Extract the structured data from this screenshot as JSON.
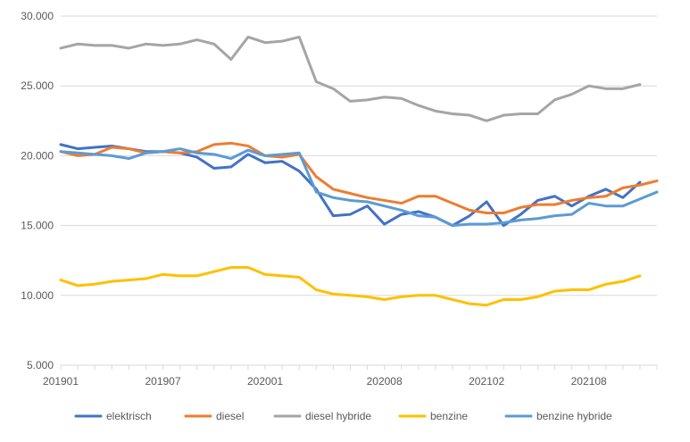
{
  "chart_data": {
    "type": "line",
    "ylim": [
      5000,
      30000
    ],
    "y_ticks": [
      "5.000",
      "10.000",
      "15.000",
      "20.000",
      "25.000",
      "30.000"
    ],
    "y_tick_values": [
      5000,
      10000,
      15000,
      20000,
      25000,
      30000
    ],
    "x_ticks": [
      "201901",
      "201907",
      "202001",
      "202008",
      "202102",
      "202108"
    ],
    "x_tick_index": [
      0,
      6,
      12,
      19,
      25,
      31
    ],
    "x": [
      "201901",
      "201902",
      "201903",
      "201904",
      "201905",
      "201906",
      "201907",
      "201908",
      "201909",
      "201910",
      "201911",
      "201912",
      "202001",
      "202002",
      "202003",
      "202004",
      "202005",
      "202006",
      "202007",
      "202008",
      "202009",
      "202010",
      "202011",
      "202012",
      "202101",
      "202102",
      "202103",
      "202104",
      "202105",
      "202106",
      "202107",
      "202108",
      "202109",
      "202110",
      "202111",
      "202112"
    ],
    "grid": true,
    "legend": "bottom",
    "series": [
      {
        "name": "elektrisch",
        "color": "#4472C4",
        "values": [
          20800,
          20500,
          20600,
          20700,
          20500,
          20300,
          20300,
          20200,
          19900,
          19100,
          19200,
          20100,
          19500,
          19600,
          18900,
          17600,
          15700,
          15800,
          16400,
          15100,
          15800,
          16000,
          15600,
          15000,
          15700,
          16700,
          15000,
          15800,
          16800,
          17100,
          16400,
          17100,
          17600,
          17000,
          18100,
          null
        ]
      },
      {
        "name": "diesel",
        "color": "#ED7D31",
        "values": [
          20300,
          20000,
          20100,
          20600,
          20500,
          20200,
          20300,
          20200,
          20300,
          20800,
          20900,
          20700,
          20000,
          19900,
          20100,
          18500,
          17600,
          17300,
          17000,
          16800,
          16600,
          17100,
          17100,
          16600,
          16100,
          15900,
          15900,
          16300,
          16500,
          16500,
          16800,
          17000,
          17100,
          17700,
          17900,
          18200
        ]
      },
      {
        "name": "diesel hybride",
        "color": "#A5A5A5",
        "values": [
          27700,
          28000,
          27900,
          27900,
          27700,
          28000,
          27900,
          28000,
          28300,
          28000,
          26900,
          28500,
          28100,
          28200,
          28500,
          25300,
          24800,
          23900,
          24000,
          24200,
          24100,
          23600,
          23200,
          23000,
          22900,
          22500,
          22900,
          23000,
          23000,
          24000,
          24400,
          25000,
          24800,
          24800,
          25100,
          null
        ]
      },
      {
        "name": "benzine",
        "color": "#FFC000",
        "values": [
          11100,
          10700,
          10800,
          11000,
          11100,
          11200,
          11500,
          11400,
          11400,
          11700,
          12000,
          12000,
          11500,
          11400,
          11300,
          10400,
          10100,
          10000,
          9900,
          9700,
          9900,
          10000,
          10000,
          9700,
          9400,
          9300,
          9700,
          9700,
          9900,
          10300,
          10400,
          10400,
          10800,
          11000,
          11400,
          null
        ]
      },
      {
        "name": "benzine hybride",
        "color": "#5B9BD5",
        "values": [
          20300,
          20200,
          20100,
          20000,
          19800,
          20200,
          20300,
          20500,
          20200,
          20100,
          19800,
          20400,
          20000,
          20100,
          20200,
          17400,
          17000,
          16800,
          16700,
          16400,
          16100,
          15700,
          15600,
          15000,
          15100,
          15100,
          15200,
          15400,
          15500,
          15700,
          15800,
          16600,
          16400,
          16400,
          16900,
          17400
        ]
      }
    ]
  }
}
